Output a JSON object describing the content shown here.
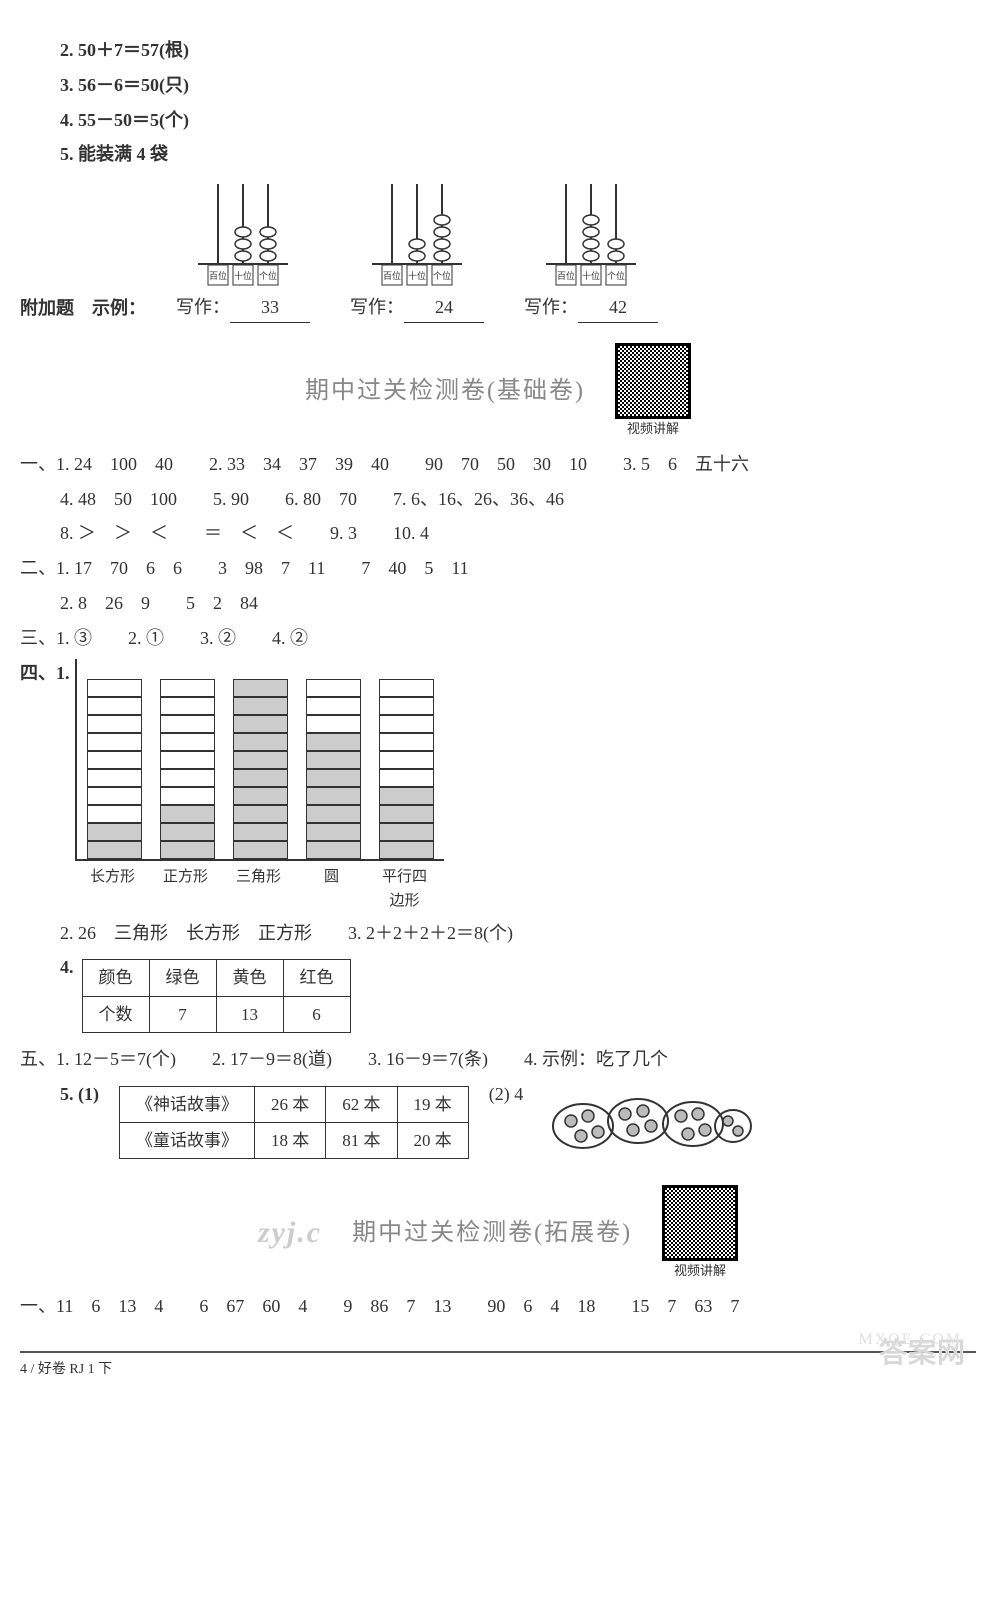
{
  "top": {
    "q2": "2. 50＋7＝57(根)",
    "q3": "3. 56－6＝50(只)",
    "q4": "4. 55－50＝5(个)",
    "q5": "5. 能装满 4 袋"
  },
  "abacus": {
    "label": "附加题　示例：",
    "write_label": "写作：",
    "col_labels": [
      "百位",
      "十位",
      "个位"
    ],
    "items": [
      {
        "beads": [
          0,
          3,
          3
        ],
        "value": "33"
      },
      {
        "beads": [
          0,
          2,
          4
        ],
        "value": "24"
      },
      {
        "beads": [
          0,
          4,
          2
        ],
        "value": "42"
      }
    ]
  },
  "mid1": {
    "title": "期中过关检测卷(基础卷)",
    "qr_caption": "视频讲解"
  },
  "sec1": {
    "r1": "一、1. 24　100　40　　2. 33　34　37　39　40　　90　70　50　30　10　　3. 5　6　五十六",
    "r2": "4. 48　50　100　　5. 90　　6. 80　70　　7. 6、16、26、36、46",
    "r3": "8. ＞　＞　＜　　＝　＜　＜　　9. 3　　10. 4"
  },
  "sec2": {
    "r1": "二、1. 17　70　6　6　　3　98　7　11　　7　40　5　11",
    "r2": "2. 8　26　9　　5　2　84"
  },
  "sec3": {
    "r": "三、1. ③　　2. ①　　3. ②　　4. ②"
  },
  "sec4": {
    "label": "四、1.",
    "chart": {
      "max": 10,
      "categories": [
        "长方形",
        "正方形",
        "三角形",
        "圆",
        "平行四边形"
      ],
      "filled": [
        2,
        3,
        10,
        7,
        4
      ],
      "fill_color": "#cccccc",
      "border_color": "#333333"
    },
    "r2": "2. 26　三角形　长方形　正方形　　3. 2＋2＋2＋2＝8(个)",
    "table_label": "4.",
    "table": {
      "header": [
        "颜色",
        "绿色",
        "黄色",
        "红色"
      ],
      "row": [
        "个数",
        "7",
        "13",
        "6"
      ]
    }
  },
  "sec5": {
    "r1": "五、1. 12－5＝7(个)　　2. 17－9＝8(道)　　3. 16－9＝7(条)　　4. 示例：吃了几个",
    "t_label": "5. (1)",
    "books": {
      "rows": [
        [
          "《神话故事》",
          "26 本",
          "62 本",
          "19 本"
        ],
        [
          "《童话故事》",
          "18 本",
          "81 本",
          "20 本"
        ]
      ]
    },
    "r_side": "(2) 4"
  },
  "mid2": {
    "wm": "zyj.c",
    "title": "期中过关检测卷(拓展卷)",
    "qr_caption": "视频讲解"
  },
  "bottom": {
    "r": "一、11　6　13　4　　6　67　60　4　　9　86　7　13　　90　6　4　18　　15　7　63　7"
  },
  "footer": {
    "text": "4 / 好卷 RJ 1 下"
  },
  "watermark": {
    "corner": "答案网",
    "mxqe": "MXQE.COM"
  }
}
